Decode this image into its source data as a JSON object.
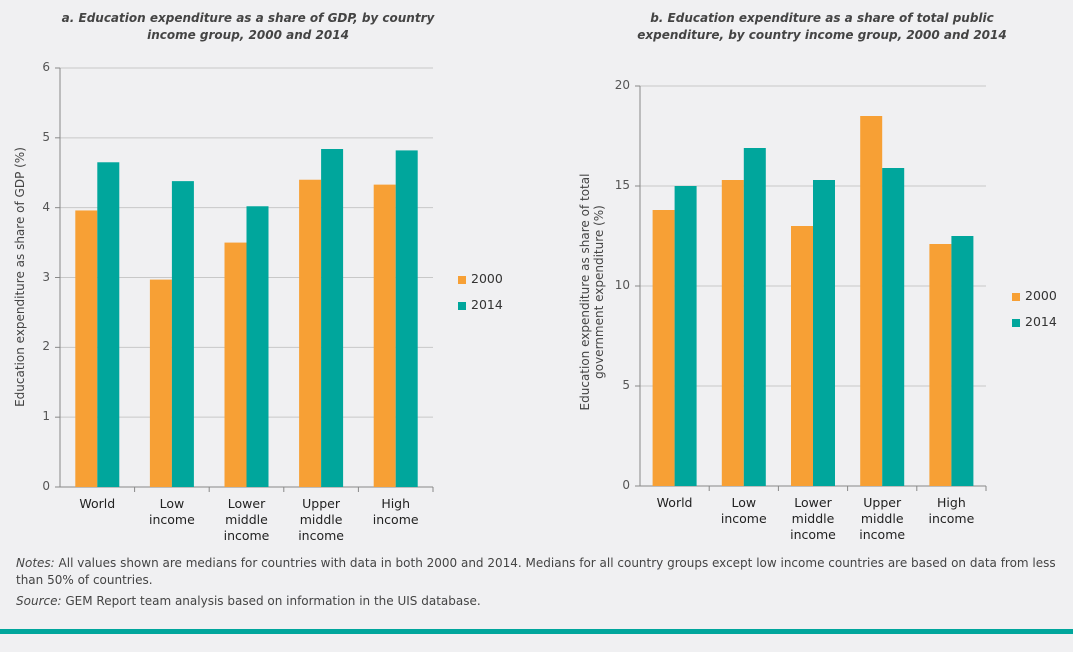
{
  "chart_data": [
    {
      "type": "bar",
      "title": "a. Education expenditure as a share of GDP, by country income group, 2000 and 2014",
      "y_label": "Education expenditure as share of GDP (%)",
      "categories": [
        "World",
        "Low income",
        "Lower middle income",
        "Upper middle income",
        "High income"
      ],
      "series": [
        {
          "name": "2000",
          "color": "#f7a035",
          "values": [
            3.96,
            2.97,
            3.5,
            4.4,
            4.33
          ]
        },
        {
          "name": "2014",
          "color": "#00a69c",
          "values": [
            4.65,
            4.38,
            4.02,
            4.84,
            4.82
          ]
        }
      ],
      "ylim": [
        0,
        6
      ],
      "yticks": [
        0,
        1,
        2,
        3,
        4,
        5,
        6
      ],
      "grid": true
    },
    {
      "type": "bar",
      "title": "b. Education expenditure as a share of total public expenditure, by country income group, 2000 and 2014",
      "y_label": "Education expenditure as share of total government expenditure (%)",
      "categories": [
        "World",
        "Low income",
        "Lower middle income",
        "Upper middle income",
        "High income"
      ],
      "series": [
        {
          "name": "2000",
          "color": "#f7a035",
          "values": [
            13.8,
            15.3,
            13.0,
            18.5,
            12.1
          ]
        },
        {
          "name": "2014",
          "color": "#00a69c",
          "values": [
            15.0,
            16.9,
            15.3,
            15.9,
            12.5
          ]
        }
      ],
      "ylim": [
        0,
        20
      ],
      "yticks": [
        0,
        5,
        10,
        15,
        20
      ],
      "grid": true
    }
  ],
  "notes": {
    "label": "Notes:",
    "text": "All values shown are medians for countries with data in both 2000 and 2014. Medians for all country groups except low income countries are based on data from less than 50% of countries."
  },
  "source": {
    "label": "Source:",
    "text": "GEM Report team analysis based on information in the UIS database."
  }
}
